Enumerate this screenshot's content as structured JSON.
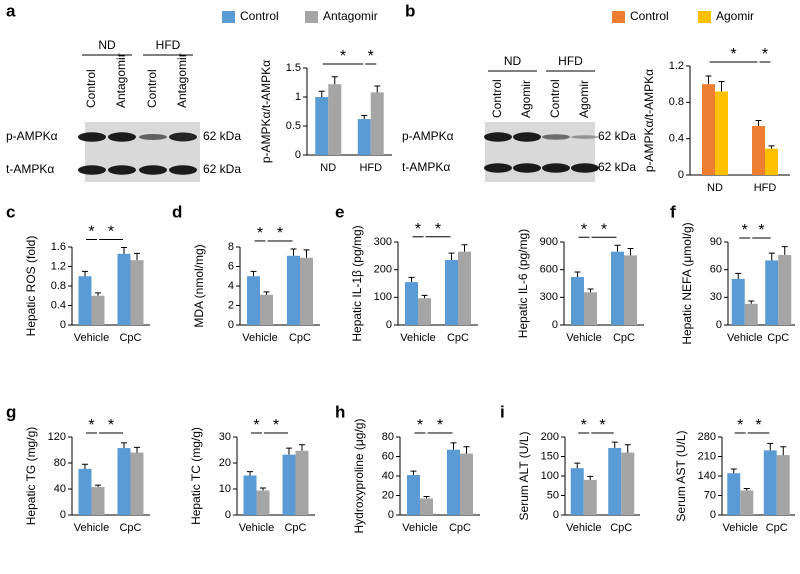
{
  "panels": [
    "a",
    "b",
    "c",
    "d",
    "e",
    "f",
    "g",
    "h",
    "i"
  ],
  "blots": [
    {
      "groups": [
        "ND",
        "HFD"
      ],
      "lanes": [
        "Control",
        "Antagomir",
        "Control",
        "Antagomir"
      ],
      "rows": [
        "p-AMPKα",
        "t-AMPKα"
      ],
      "sizes": [
        "62 kDa",
        "62 kDa"
      ]
    },
    {
      "groups": [
        "ND",
        "HFD"
      ],
      "lanes": [
        "Control",
        "Agomir",
        "Control",
        "Agomir"
      ],
      "rows": [
        "p-AMPKα",
        "t-AMPKα"
      ],
      "sizes": [
        "62 kDa",
        "62 kDa"
      ]
    }
  ],
  "chart_data": [
    {
      "type": "bar",
      "ylabel": "p-AMPKα/t-AMPKα",
      "categories": [
        "ND",
        "HFD"
      ],
      "ylim": [
        0,
        1.5
      ],
      "yticks": [
        0,
        0.5,
        1,
        1.5
      ],
      "annotations": [
        "*",
        "*"
      ],
      "series": [
        {
          "name": "Control",
          "color": "#5b9bd5",
          "values": [
            1.0,
            0.62
          ],
          "errors": [
            0.1,
            0.06
          ]
        },
        {
          "name": "Antagomir",
          "color": "#a5a5a5",
          "values": [
            1.22,
            1.08
          ],
          "errors": [
            0.13,
            0.11
          ]
        }
      ]
    },
    {
      "type": "bar",
      "ylabel": "p-AMPKα/t-AMPKα",
      "categories": [
        "ND",
        "HFD"
      ],
      "ylim": [
        0,
        1.2
      ],
      "yticks": [
        0,
        0.4,
        0.8,
        1.2
      ],
      "annotations": [
        "*",
        "*"
      ],
      "series": [
        {
          "name": "Control",
          "color": "#ed7d31",
          "values": [
            1.0,
            0.54
          ],
          "errors": [
            0.09,
            0.06
          ]
        },
        {
          "name": "Agomir",
          "color": "#ffc000",
          "values": [
            0.92,
            0.29
          ],
          "errors": [
            0.11,
            0.03
          ]
        }
      ]
    },
    {
      "type": "bar",
      "ylabel": "Hepatic ROS (fold)",
      "categories": [
        "Vehicle",
        "CpC"
      ],
      "ylim": [
        0,
        1.6
      ],
      "yticks": [
        0,
        0.4,
        0.8,
        1.2,
        1.6
      ],
      "annotations": [
        "*",
        "*"
      ],
      "series": [
        {
          "color": "#5b9bd5",
          "values": [
            1.0,
            1.46
          ],
          "errors": [
            0.1,
            0.13
          ]
        },
        {
          "color": "#a5a5a5",
          "values": [
            0.6,
            1.33
          ],
          "errors": [
            0.06,
            0.14
          ]
        }
      ]
    },
    {
      "type": "bar",
      "ylabel": "MDA (nmol/mg)",
      "categories": [
        "Vehicle",
        "CpC"
      ],
      "ylim": [
        0,
        8
      ],
      "yticks": [
        0,
        2,
        4,
        6,
        8
      ],
      "annotations": [
        "*",
        "*"
      ],
      "series": [
        {
          "color": "#5b9bd5",
          "values": [
            5.0,
            7.1
          ],
          "errors": [
            0.5,
            0.7
          ]
        },
        {
          "color": "#a5a5a5",
          "values": [
            3.1,
            6.9
          ],
          "errors": [
            0.3,
            0.8
          ]
        }
      ]
    },
    {
      "type": "bar",
      "ylabel": "Hepatic IL-1β (pg/mg)",
      "categories": [
        "Vehicle",
        "CpC"
      ],
      "ylim": [
        0,
        300
      ],
      "yticks": [
        0,
        100,
        200,
        300
      ],
      "annotations": [
        "*",
        "*"
      ],
      "series": [
        {
          "color": "#5b9bd5",
          "values": [
            155,
            235
          ],
          "errors": [
            17,
            25
          ]
        },
        {
          "color": "#a5a5a5",
          "values": [
            97,
            265
          ],
          "errors": [
            10,
            25
          ]
        }
      ]
    },
    {
      "type": "bar",
      "ylabel": "Hepatic IL-6 (pg/mg)",
      "categories": [
        "Vehicle",
        "CpC"
      ],
      "ylim": [
        0,
        900
      ],
      "yticks": [
        0,
        300,
        600,
        900
      ],
      "annotations": [
        "*",
        "*"
      ],
      "series": [
        {
          "color": "#5b9bd5",
          "values": [
            520,
            795
          ],
          "errors": [
            55,
            70
          ]
        },
        {
          "color": "#a5a5a5",
          "values": [
            355,
            755
          ],
          "errors": [
            35,
            75
          ]
        }
      ]
    },
    {
      "type": "bar",
      "ylabel": "Hepatic NEFA (μmol/g)",
      "categories": [
        "Vehicle",
        "CpC"
      ],
      "ylim": [
        0,
        90
      ],
      "yticks": [
        0,
        30,
        60,
        90
      ],
      "annotations": [
        "*",
        "*"
      ],
      "series": [
        {
          "color": "#5b9bd5",
          "values": [
            50,
            70
          ],
          "errors": [
            6,
            8
          ]
        },
        {
          "color": "#a5a5a5",
          "values": [
            23,
            76
          ],
          "errors": [
            3,
            9
          ]
        }
      ]
    },
    {
      "type": "bar",
      "ylabel": "Hepatic TG (mg/g)",
      "categories": [
        "Vehicle",
        "CpC"
      ],
      "ylim": [
        0,
        120
      ],
      "yticks": [
        0,
        40,
        80,
        120
      ],
      "annotations": [
        "*",
        "*"
      ],
      "series": [
        {
          "color": "#5b9bd5",
          "values": [
            71,
            103
          ],
          "errors": [
            7,
            8
          ]
        },
        {
          "color": "#a5a5a5",
          "values": [
            43,
            96
          ],
          "errors": [
            3,
            8
          ]
        }
      ]
    },
    {
      "type": "bar",
      "ylabel": "Hepatic TC (mg/g)",
      "categories": [
        "Vehicle",
        "CpC"
      ],
      "ylim": [
        0,
        30
      ],
      "yticks": [
        0,
        10,
        20,
        30
      ],
      "annotations": [
        "*",
        "*"
      ],
      "series": [
        {
          "color": "#5b9bd5",
          "values": [
            15.2,
            23.2
          ],
          "errors": [
            1.5,
            2.5
          ]
        },
        {
          "color": "#a5a5a5",
          "values": [
            9.4,
            24.7
          ],
          "errors": [
            1,
            2.3
          ]
        }
      ]
    },
    {
      "type": "bar",
      "ylabel": "Hydroxyproline (μg/g)",
      "categories": [
        "Vehicle",
        "CpC"
      ],
      "ylim": [
        0,
        80
      ],
      "yticks": [
        0,
        20,
        40,
        60,
        80
      ],
      "annotations": [
        "*",
        "*"
      ],
      "series": [
        {
          "color": "#5b9bd5",
          "values": [
            41,
            67
          ],
          "errors": [
            4,
            7
          ]
        },
        {
          "color": "#a5a5a5",
          "values": [
            17,
            63
          ],
          "errors": [
            2,
            7
          ]
        }
      ]
    },
    {
      "type": "bar",
      "ylabel": "Serum ALT (U/L)",
      "categories": [
        "Vehicle",
        "CpC"
      ],
      "ylim": [
        0,
        200
      ],
      "yticks": [
        0,
        50,
        100,
        150,
        200
      ],
      "annotations": [
        "*",
        "*"
      ],
      "series": [
        {
          "color": "#5b9bd5",
          "values": [
            120,
            172
          ],
          "errors": [
            13,
            15
          ]
        },
        {
          "color": "#a5a5a5",
          "values": [
            90,
            160
          ],
          "errors": [
            9,
            20
          ]
        }
      ]
    },
    {
      "type": "bar",
      "ylabel": "Serum AST (U/L)",
      "categories": [
        "Vehicle",
        "CpC"
      ],
      "ylim": [
        0,
        280
      ],
      "yticks": [
        0,
        70,
        140,
        210,
        280
      ],
      "annotations": [
        "*",
        "*"
      ],
      "series": [
        {
          "color": "#5b9bd5",
          "values": [
            150,
            232
          ],
          "errors": [
            15,
            25
          ]
        },
        {
          "color": "#a5a5a5",
          "values": [
            88,
            215
          ],
          "errors": [
            7,
            30
          ]
        }
      ]
    }
  ]
}
